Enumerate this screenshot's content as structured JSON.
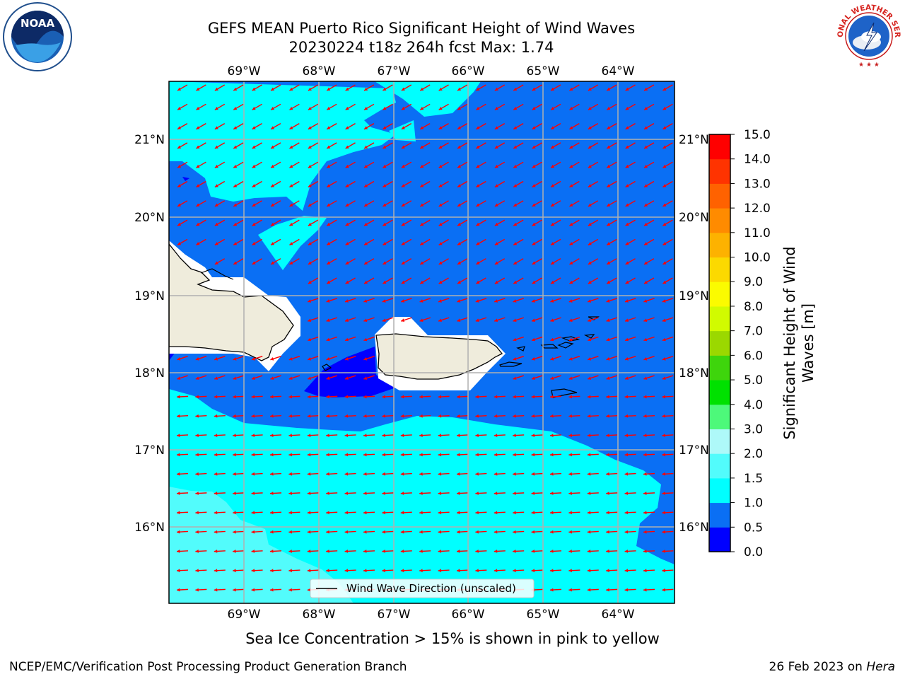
{
  "title": {
    "line1": "GEFS MEAN Puerto Rico Significant Height of Wind Waves",
    "line2": "20230224 t18z 264h fcst   Max: 1.74"
  },
  "map": {
    "lon_labels": [
      "69°W",
      "68°W",
      "67°W",
      "66°W",
      "65°W",
      "64°W"
    ],
    "lat_labels": [
      "21°N",
      "20°N",
      "19°N",
      "18°N",
      "17°N",
      "16°N"
    ],
    "legend_label": "Wind Wave Direction (unscaled)",
    "arrow_color": "#ff0000"
  },
  "colorbar": {
    "title_line1": "Significant Height of Wind",
    "title_line2": "Waves [m]",
    "ticks": [
      "0.0",
      "0.5",
      "1.0",
      "1.5",
      "2.0",
      "3.0",
      "4.0",
      "5.0",
      "6.0",
      "7.0",
      "8.0",
      "9.0",
      "10.0",
      "11.0",
      "12.0",
      "13.0",
      "14.0",
      "15.0"
    ],
    "colors": [
      "#0000ff",
      "#0a6ff4",
      "#00ffff",
      "#52fcfc",
      "#aef9f9",
      "#4df97a",
      "#00e100",
      "#3ed50c",
      "#9bd800",
      "#d1fb00",
      "#fbfb00",
      "#fcd900",
      "#fdb200",
      "#ff8b00",
      "#ff6200",
      "#ff3300",
      "#ff0000"
    ]
  },
  "caption": "Sea Ice Concentration > 15% is shown in pink to yellow",
  "footer": {
    "left": "NCEP/EMC/Verification Post Processing Product Generation Branch",
    "right_prefix": "26 Feb 2023 on ",
    "right_host": "Hera"
  },
  "logos": {
    "noaa": "NOAA",
    "nws": "NATIONAL WEATHER SERVICE"
  }
}
